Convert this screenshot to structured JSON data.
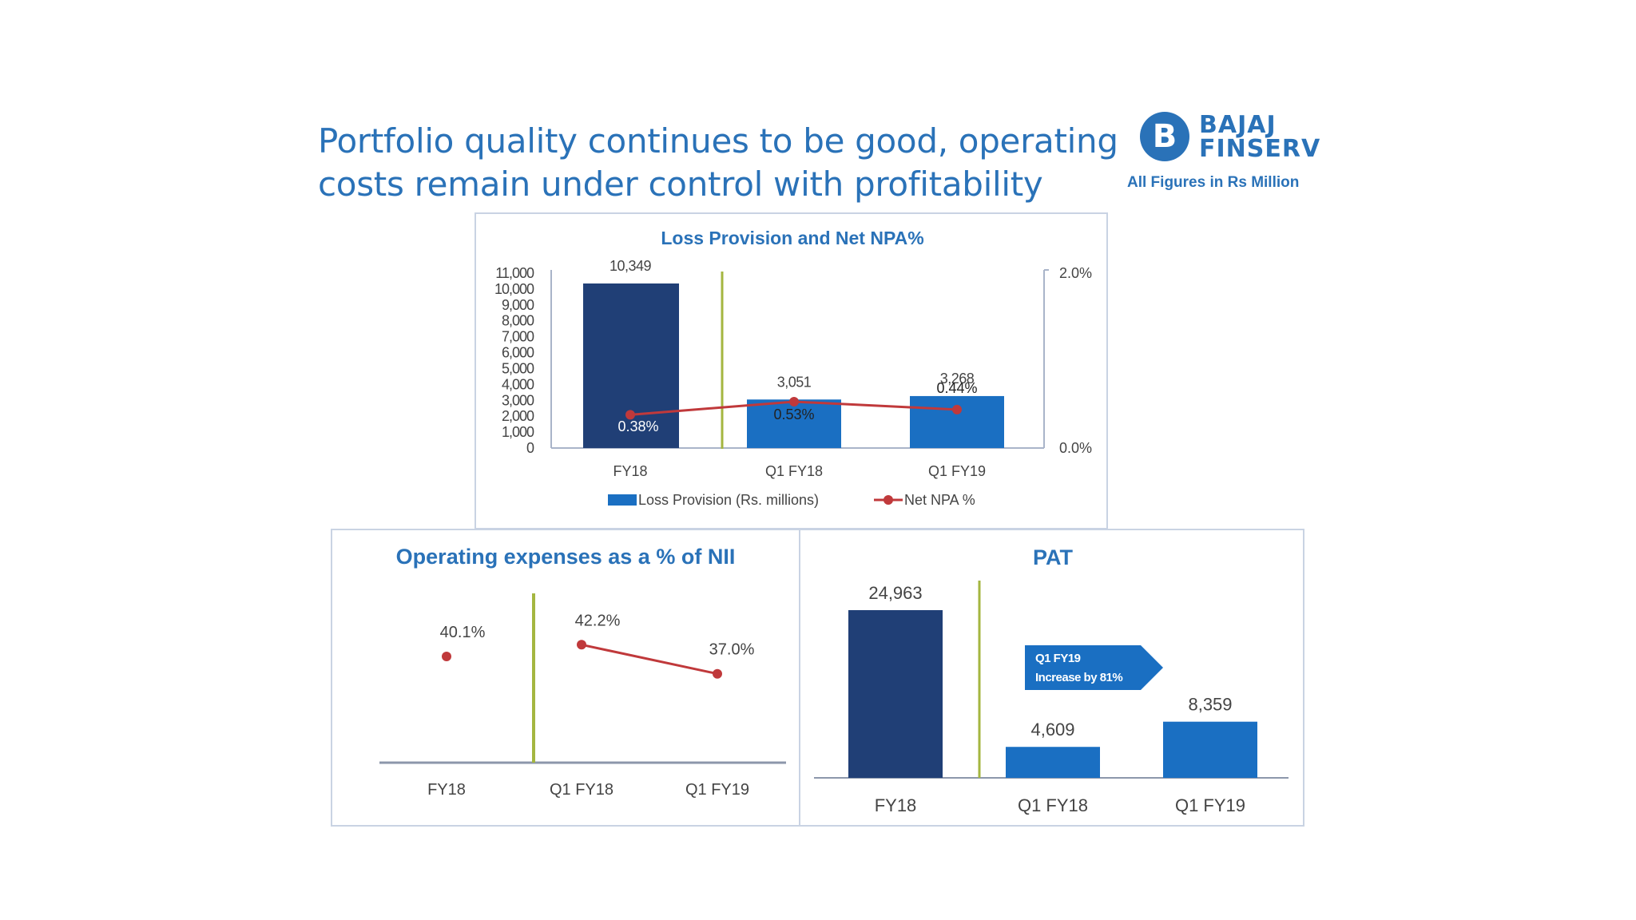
{
  "header": {
    "title_line1": "Portfolio quality continues to be good, operating",
    "title_line2": "costs remain under control with profitability",
    "logo_text_line1": "BAJAJ",
    "logo_text_line2": "FINSERV",
    "logo_mark": "B",
    "note": "All Figures in Rs Million"
  },
  "colors": {
    "dark_bar": "#203f76",
    "bar": "#1a6fc2",
    "line": "#c0393b",
    "divider": "#a4b640",
    "title": "#2a72b8",
    "axis": "#a9b4c9"
  },
  "chart_data": [
    {
      "type": "bar+line",
      "title": "Loss Provision and Net NPA%",
      "categories": [
        "FY18",
        "Q1 FY18",
        "Q1 FY19"
      ],
      "series": [
        {
          "name": "Loss Provision  (Rs. millions)",
          "type": "bar",
          "axis": "left",
          "values": [
            10349,
            3051,
            3268
          ],
          "labels": [
            "10,349",
            "3,051",
            "3,268"
          ]
        },
        {
          "name": "Net NPA %",
          "type": "line",
          "axis": "right",
          "values": [
            0.38,
            0.53,
            0.44
          ],
          "labels": [
            "0.38%",
            "0.53%",
            "0.44%"
          ]
        }
      ],
      "y_left_ticks": [
        "11,000",
        "10,000",
        "9,000",
        "8,000",
        "7,000",
        "6,000",
        "5,000",
        "4,000",
        "3,000",
        "2,000",
        "1,000",
        "0"
      ],
      "y_left_range": [
        0,
        11000
      ],
      "y_right_ticks": [
        "2.0%",
        "0.0%"
      ],
      "y_right_range": [
        0,
        2.0
      ],
      "legend": "bottom"
    },
    {
      "type": "line",
      "title": "Operating expenses as a % of NII",
      "categories": [
        "FY18",
        "Q1 FY18",
        "Q1 FY19"
      ],
      "values": [
        40.1,
        42.2,
        37.0
      ],
      "labels": [
        "40.1%",
        "42.2%",
        "37.0%"
      ]
    },
    {
      "type": "bar",
      "title": "PAT",
      "categories": [
        "FY18",
        "Q1 FY18",
        "Q1 FY19"
      ],
      "values": [
        24963,
        4609,
        8359
      ],
      "labels": [
        "24,963",
        "4,609",
        "8,359"
      ],
      "callout_line1": "Q1 FY19",
      "callout_line2": "Increase by 81%"
    }
  ]
}
